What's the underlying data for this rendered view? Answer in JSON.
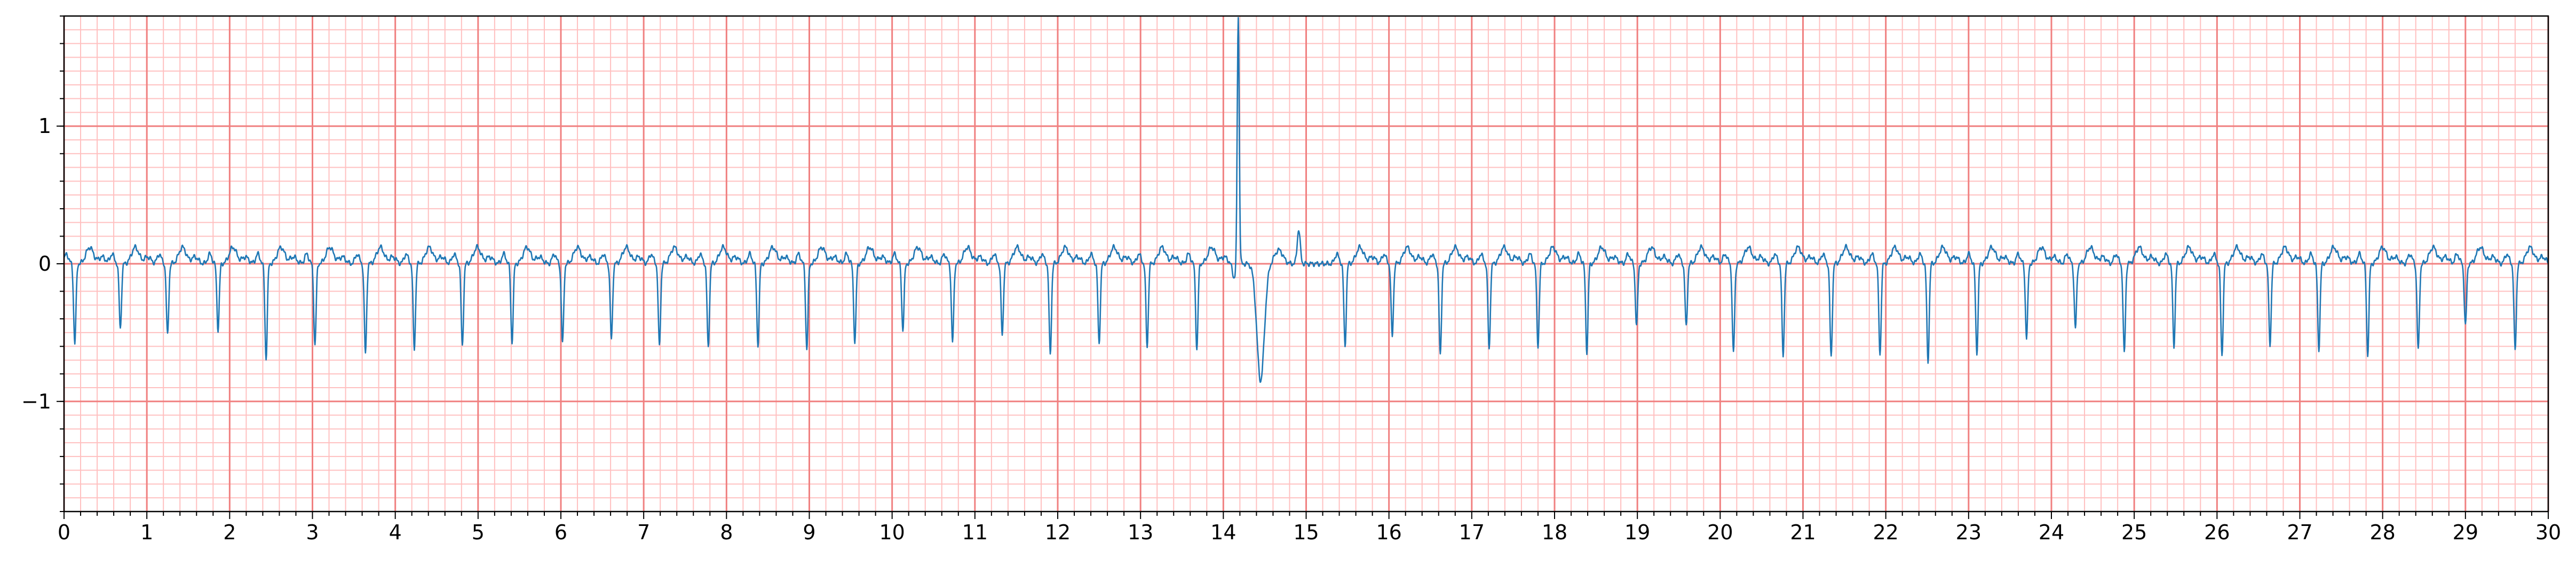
{
  "chart_data": {
    "type": "line",
    "title": "",
    "xlabel": "",
    "ylabel": "",
    "xlim": [
      0,
      30
    ],
    "ylim": [
      -1.8,
      1.8
    ],
    "x_ticks": [
      0,
      1,
      2,
      3,
      4,
      5,
      6,
      7,
      8,
      9,
      10,
      11,
      12,
      13,
      14,
      15,
      16,
      17,
      18,
      19,
      20,
      21,
      22,
      23,
      24,
      25,
      26,
      27,
      28,
      29,
      30
    ],
    "x_tick_labels": [
      "0",
      "1",
      "2",
      "3",
      "4",
      "5",
      "6",
      "7",
      "8",
      "9",
      "10",
      "11",
      "12",
      "13",
      "14",
      "15",
      "16",
      "17",
      "18",
      "19",
      "20",
      "21",
      "22",
      "23",
      "24",
      "25",
      "26",
      "27",
      "28",
      "29",
      "30"
    ],
    "y_ticks": [
      -1,
      0,
      1
    ],
    "y_tick_labels": [
      "−1",
      "0",
      "1"
    ],
    "grid": {
      "major": true,
      "minor": true,
      "major_x_step": 1,
      "major_y_step": 1,
      "minor_x_step": 0.2,
      "minor_y_step": 0.1
    },
    "colors": {
      "signal": "#1f77b4",
      "major_grid": "#f08080",
      "minor_grid": "#ffc0c0"
    },
    "series": [
      {
        "beats": [
          {
            "t": 0.13,
            "depth": -0.58
          },
          {
            "t": 0.68,
            "depth": -0.47
          },
          {
            "t": 1.25,
            "depth": -0.52
          },
          {
            "t": 1.86,
            "depth": -0.48
          },
          {
            "t": 2.44,
            "depth": -0.69
          },
          {
            "t": 3.03,
            "depth": -0.59
          },
          {
            "t": 3.64,
            "depth": -0.65
          },
          {
            "t": 4.23,
            "depth": -0.62
          },
          {
            "t": 4.81,
            "depth": -0.6
          },
          {
            "t": 5.41,
            "depth": -0.57
          },
          {
            "t": 6.02,
            "depth": -0.58
          },
          {
            "t": 6.61,
            "depth": -0.55
          },
          {
            "t": 7.19,
            "depth": -0.6
          },
          {
            "t": 7.78,
            "depth": -0.61
          },
          {
            "t": 8.38,
            "depth": -0.59
          },
          {
            "t": 8.97,
            "depth": -0.62
          },
          {
            "t": 9.55,
            "depth": -0.57
          },
          {
            "t": 10.13,
            "depth": -0.48
          },
          {
            "t": 10.73,
            "depth": -0.57
          },
          {
            "t": 11.33,
            "depth": -0.52
          },
          {
            "t": 11.91,
            "depth": -0.66
          },
          {
            "t": 12.5,
            "depth": -0.58
          },
          {
            "t": 13.08,
            "depth": -0.6
          },
          {
            "t": 13.68,
            "depth": -0.62
          },
          {
            "t": 14.18,
            "depth": -0.1,
            "spike": 1.8
          },
          {
            "t": 14.45,
            "depth": -0.85,
            "wide": true
          },
          {
            "t": 14.91,
            "depth": 0.25,
            "up": true
          },
          {
            "t": 15.47,
            "depth": -0.6
          },
          {
            "t": 16.04,
            "depth": -0.53
          },
          {
            "t": 16.62,
            "depth": -0.67
          },
          {
            "t": 17.21,
            "depth": -0.62
          },
          {
            "t": 17.8,
            "depth": -0.6
          },
          {
            "t": 18.39,
            "depth": -0.64
          },
          {
            "t": 18.99,
            "depth": -0.45
          },
          {
            "t": 19.59,
            "depth": -0.46
          },
          {
            "t": 20.16,
            "depth": -0.65
          },
          {
            "t": 20.76,
            "depth": -0.67
          },
          {
            "t": 21.34,
            "depth": -0.68
          },
          {
            "t": 21.93,
            "depth": -0.66
          },
          {
            "t": 22.51,
            "depth": -0.71
          },
          {
            "t": 23.1,
            "depth": -0.65
          },
          {
            "t": 23.7,
            "depth": -0.54
          },
          {
            "t": 24.29,
            "depth": -0.47
          },
          {
            "t": 24.88,
            "depth": -0.65
          },
          {
            "t": 25.48,
            "depth": -0.6
          },
          {
            "t": 26.06,
            "depth": -0.67
          },
          {
            "t": 26.64,
            "depth": -0.59
          },
          {
            "t": 27.23,
            "depth": -0.62
          },
          {
            "t": 27.82,
            "depth": -0.66
          },
          {
            "t": 28.43,
            "depth": -0.63
          },
          {
            "t": 29.0,
            "depth": -0.45
          },
          {
            "t": 29.6,
            "depth": -0.63
          }
        ]
      }
    ]
  }
}
